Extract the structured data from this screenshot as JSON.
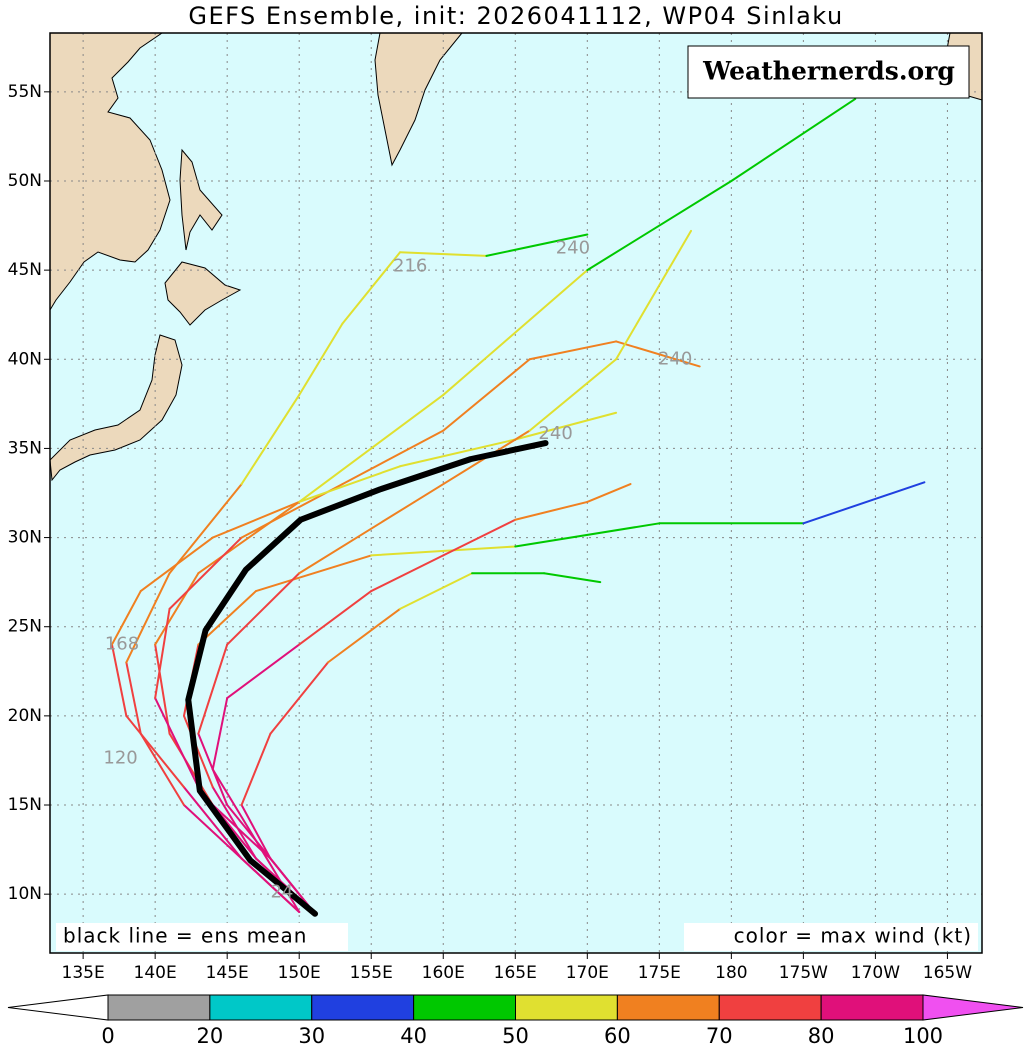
{
  "chart_data": {
    "type": "track-map",
    "title": "GEFS Ensemble, init: 2026041112, WP04 Sinlaku",
    "watermark": "Weathernerds.org",
    "left_note": "black line = ens mean",
    "right_note": "color = max wind (kt)",
    "xlim": [
      132.7,
      197.4
    ],
    "ylim": [
      6.7,
      58.3
    ],
    "xticks": [
      {
        "value": 135,
        "label": "135E"
      },
      {
        "value": 140,
        "label": "140E"
      },
      {
        "value": 145,
        "label": "145E"
      },
      {
        "value": 150,
        "label": "150E"
      },
      {
        "value": 155,
        "label": "155E"
      },
      {
        "value": 160,
        "label": "160E"
      },
      {
        "value": 165,
        "label": "165E"
      },
      {
        "value": 170,
        "label": "170E"
      },
      {
        "value": 175,
        "label": "175E"
      },
      180,
      {
        "value": 185,
        "label": "175W"
      },
      {
        "value": 190,
        "label": "170W"
      },
      {
        "value": 195,
        "label": "165W"
      }
    ],
    "yticks": [
      {
        "value": 10,
        "label": "10N"
      },
      {
        "value": 15,
        "label": "15N"
      },
      {
        "value": 20,
        "label": "20N"
      },
      {
        "value": 25,
        "label": "25N"
      },
      {
        "value": 30,
        "label": "30N"
      },
      {
        "value": 35,
        "label": "35N"
      },
      {
        "value": 40,
        "label": "40N"
      },
      {
        "value": 45,
        "label": "45N"
      },
      {
        "value": 50,
        "label": "50N"
      },
      {
        "value": 55,
        "label": "55N"
      }
    ],
    "grid": true,
    "colorbar": {
      "levels": [
        0,
        20,
        30,
        40,
        50,
        60,
        70,
        80,
        100
      ],
      "colors": [
        "#a0a0a0",
        "#00c8c8",
        "#2040e0",
        "#00c800",
        "#e0e030",
        "#f08020",
        "#f04040",
        "#e0107a"
      ],
      "under_color": "#ffffff",
      "over_color": "#f050f0"
    },
    "mean": {
      "color": "#000000",
      "lon": [
        151.1,
        146.6,
        143.1,
        142.3,
        143.5,
        146.3,
        150.1,
        155.6,
        161.9,
        167.1
      ],
      "lat": [
        8.9,
        11.9,
        15.8,
        20.9,
        24.8,
        28.2,
        31.0,
        32.7,
        34.4,
        35.3
      ]
    },
    "members": [
      {
        "lon": [
          151,
          148,
          144,
          141,
          140,
          143,
          150,
          160,
          170,
          180,
          188.6
        ],
        "lat": [
          9,
          12,
          15,
          19,
          24,
          28,
          32,
          38,
          45,
          50,
          54.6
        ],
        "wind": [
          90,
          85,
          75,
          70,
          65,
          60,
          55,
          50,
          45,
          45,
          45
        ]
      },
      {
        "lon": [
          151,
          147,
          144,
          142,
          143,
          147,
          155,
          165,
          175,
          185,
          193.4
        ],
        "lat": [
          9,
          12,
          16,
          20,
          24,
          27,
          29,
          29.5,
          30.8,
          30.8,
          33.1
        ],
        "wind": [
          85,
          82,
          78,
          72,
          68,
          60,
          55,
          48,
          45,
          35,
          25
        ]
      },
      {
        "lon": [
          150,
          146,
          142,
          139,
          138,
          141,
          146,
          150,
          153,
          157,
          163,
          170
        ],
        "lat": [
          9,
          12,
          15,
          19,
          23,
          28,
          33,
          38,
          42,
          46,
          45.8,
          47
        ],
        "wind": [
          85,
          80,
          75,
          70,
          65,
          60,
          58,
          55,
          55,
          52,
          48,
          45
        ]
      },
      {
        "lon": [
          151,
          147,
          143,
          140,
          141,
          146,
          153,
          160,
          166,
          172,
          177.8
        ],
        "lat": [
          9,
          12,
          16,
          21,
          26,
          30,
          33,
          36,
          40,
          41,
          39.6
        ],
        "wind": [
          88,
          85,
          80,
          75,
          70,
          68,
          65,
          65,
          62,
          60,
          60
        ]
      },
      {
        "lon": [
          150,
          147,
          144,
          145,
          150,
          155,
          160,
          165,
          170,
          173
        ],
        "lat": [
          9,
          13,
          17,
          21,
          24,
          27,
          29,
          31,
          32,
          33
        ],
        "wind": [
          90,
          88,
          85,
          80,
          75,
          72,
          70,
          68,
          65,
          55
        ]
      },
      {
        "lon": [
          151,
          148,
          146,
          148,
          152,
          157,
          162,
          167,
          170.9
        ],
        "lat": [
          9,
          12,
          15,
          19,
          23,
          26,
          28,
          28,
          27.5
        ],
        "wind": [
          85,
          82,
          78,
          72,
          65,
          58,
          48,
          42,
          35
        ]
      },
      {
        "lon": [
          150,
          146,
          142,
          138,
          137,
          139,
          144,
          150,
          157,
          165,
          172
        ],
        "lat": [
          9,
          12,
          16,
          20,
          24,
          27,
          30,
          32,
          34,
          35.5,
          37
        ],
        "wind": [
          85,
          82,
          78,
          72,
          68,
          65,
          60,
          58,
          55,
          55,
          52
        ]
      },
      {
        "lon": [
          151,
          148,
          145,
          143,
          145,
          150,
          158,
          166,
          172,
          177.2
        ],
        "lat": [
          9,
          12,
          15,
          19,
          24,
          28,
          32,
          36,
          40,
          47.2
        ],
        "wind": [
          88,
          85,
          80,
          75,
          70,
          65,
          60,
          55,
          50,
          45
        ]
      }
    ],
    "hour_labels": [
      {
        "text": "240",
        "lon": 169,
        "lat": 46.2
      },
      {
        "text": "216",
        "lon": 157.7,
        "lat": 45.2
      },
      {
        "text": "240",
        "lon": 176.1,
        "lat": 40
      },
      {
        "text": "240",
        "lon": 167.8,
        "lat": 35.8
      },
      {
        "text": "24",
        "lon": 148.8,
        "lat": 10.1
      },
      {
        "text": "120",
        "lon": 137.6,
        "lat": 17.6
      },
      {
        "text": "168",
        "lon": 137.7,
        "lat": 24
      }
    ]
  }
}
